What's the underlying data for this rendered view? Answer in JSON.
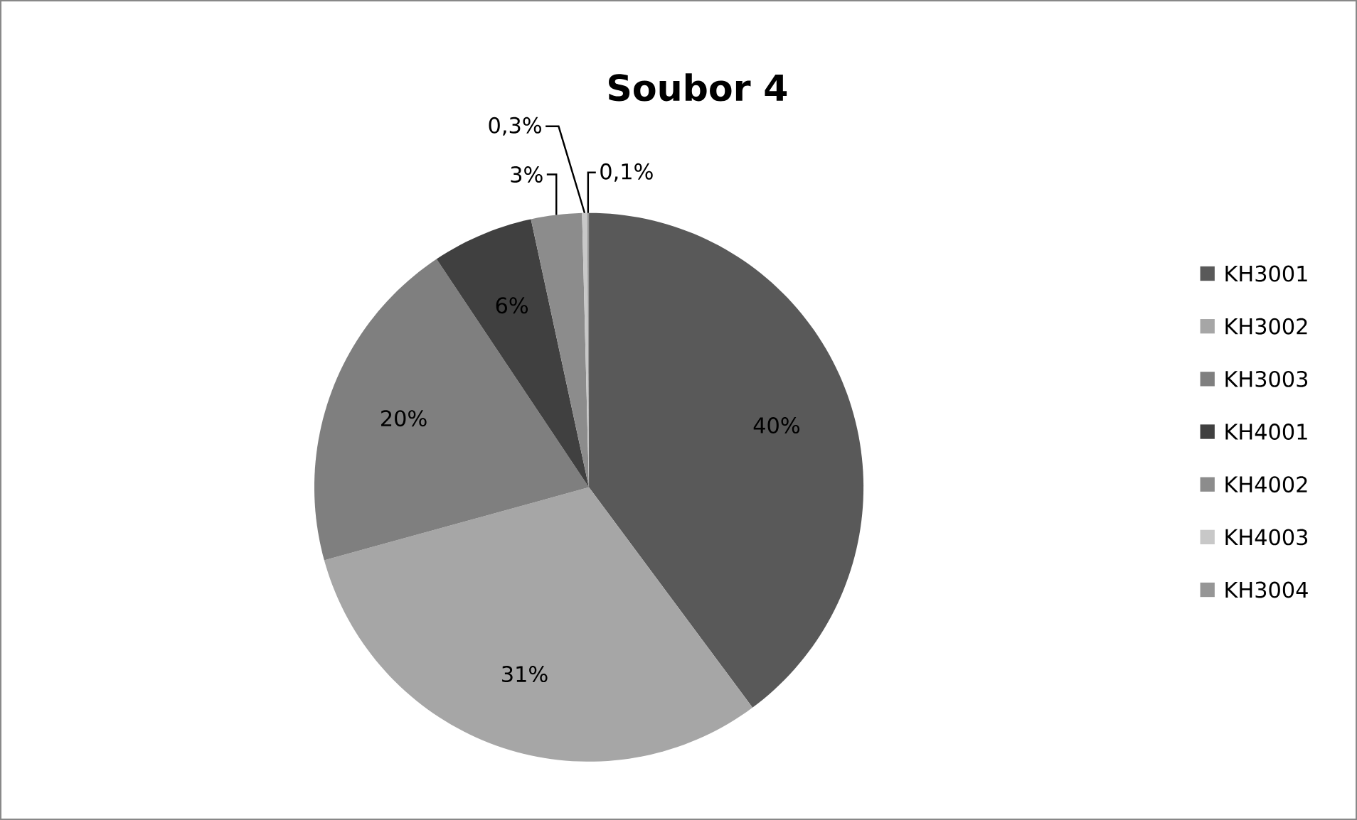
{
  "chart_data": {
    "type": "pie",
    "title": "Soubor 4",
    "categories": [
      "KH3001",
      "KH3002",
      "KH3003",
      "KH4001",
      "KH4002",
      "KH4003",
      "KH3004"
    ],
    "values": [
      40,
      31,
      20,
      6,
      3,
      0.3,
      0.1
    ],
    "value_labels": [
      "40%",
      "31%",
      "20%",
      "6%",
      "3%",
      "0,3%",
      "0,1%"
    ],
    "colors": [
      "#595959",
      "#a6a6a6",
      "#7f7f7f",
      "#404040",
      "#8c8c8c",
      "#c8c8c8",
      "#969696"
    ],
    "legend": "right"
  }
}
